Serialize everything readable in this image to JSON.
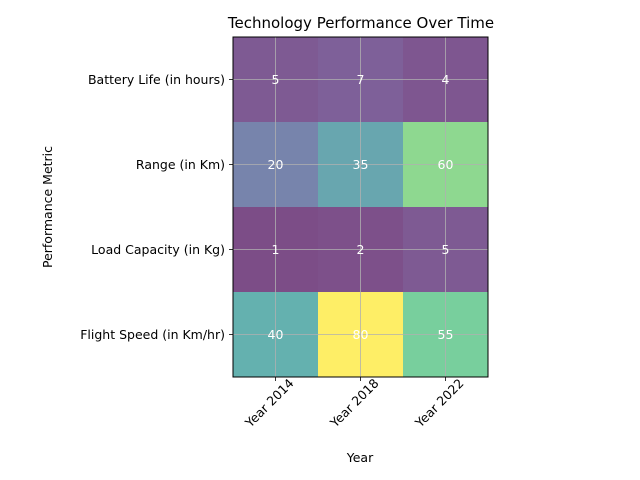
{
  "chart_data": {
    "type": "heatmap",
    "title": "Technology Performance Over Time",
    "xlabel": "Year",
    "ylabel": "Performance Metric",
    "x_categories": [
      "Year 2014",
      "Year 2018",
      "Year 2022"
    ],
    "y_categories": [
      "Battery Life (in hours)",
      "Range (in Km)",
      "Load Capacity (in Kg)",
      "Flight Speed (in Km/hr)"
    ],
    "values": [
      [
        5,
        7,
        4
      ],
      [
        20,
        35,
        60
      ],
      [
        1,
        2,
        5
      ],
      [
        40,
        80,
        55
      ]
    ],
    "colormap": "viridis",
    "cell_alpha": 0.7,
    "grid": true,
    "value_labels": true,
    "x_tick_rotation": 45
  }
}
